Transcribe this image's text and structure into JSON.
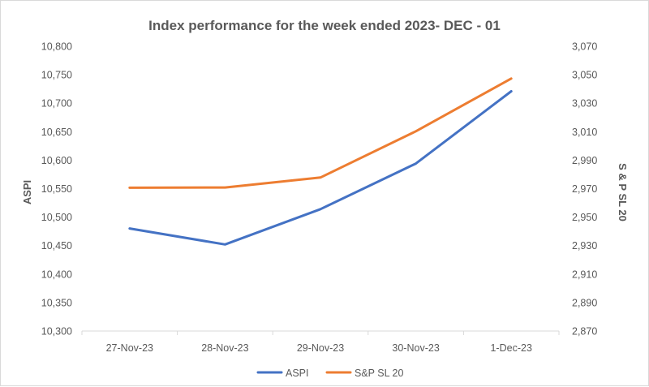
{
  "chart_data": {
    "type": "line",
    "title": "Index performance for the week ended 2023- DEC - 01",
    "categories": [
      "27-Nov-23",
      "28-Nov-23",
      "29-Nov-23",
      "30-Nov-23",
      "1-Dec-23"
    ],
    "left_axis": {
      "label": "ASPI",
      "min": 10300,
      "max": 10800,
      "step": 50,
      "ticks": [
        "10,300",
        "10,350",
        "10,400",
        "10,450",
        "10,500",
        "10,550",
        "10,600",
        "10,650",
        "10,700",
        "10,750",
        "10,800"
      ]
    },
    "right_axis": {
      "label": "S & P SL 20",
      "min": 2870,
      "max": 3070,
      "step": 20,
      "ticks": [
        "2,870",
        "2,890",
        "2,910",
        "2,930",
        "2,950",
        "2,970",
        "2,990",
        "3,010",
        "3,030",
        "3,050",
        "3,070"
      ]
    },
    "series": [
      {
        "name": "ASPI",
        "axis": "left",
        "color": "#4472c4",
        "values": [
          10480,
          10452,
          10514,
          10594,
          10721
        ]
      },
      {
        "name": "S&P SL 20",
        "axis": "right",
        "color": "#ed7d31",
        "values": [
          2970.6,
          2970.8,
          2977.8,
          3010.3,
          3047.3
        ]
      }
    ],
    "grid": false,
    "legend_position": "bottom"
  }
}
